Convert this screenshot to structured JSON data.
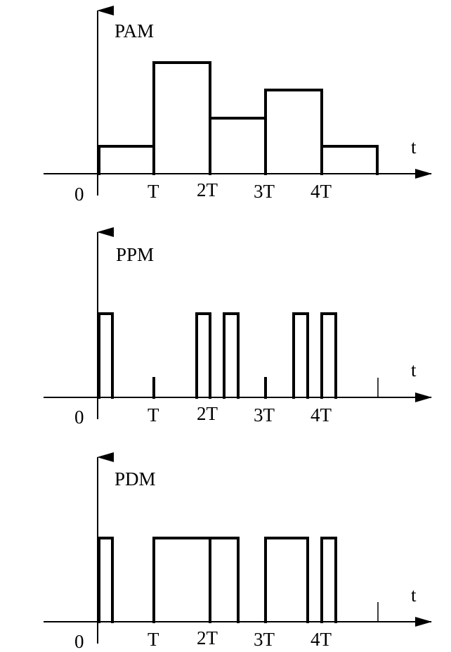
{
  "panels": [
    {
      "id": "pam",
      "title": "PAM",
      "axis_label": "t",
      "origin_label": "0",
      "ticks": [
        "T",
        "2T",
        "3T",
        "4T"
      ]
    },
    {
      "id": "ppm",
      "title": "PPM",
      "axis_label": "t",
      "origin_label": "0",
      "ticks": [
        "T",
        "2T",
        "3T",
        "4T"
      ]
    },
    {
      "id": "pdm",
      "title": "PDM",
      "axis_label": "t",
      "origin_label": "0",
      "ticks": [
        "T",
        "2T",
        "3T",
        "4T"
      ]
    }
  ]
}
